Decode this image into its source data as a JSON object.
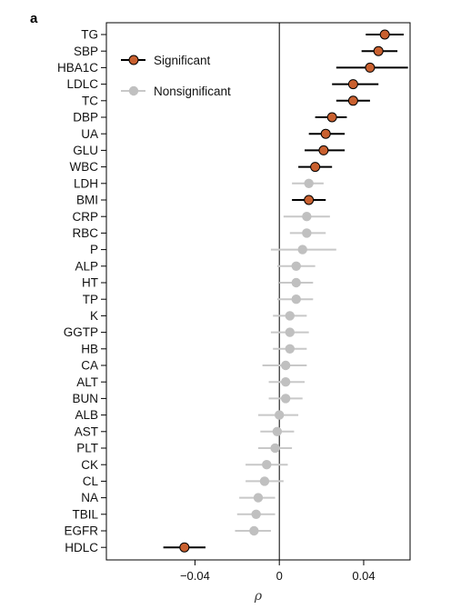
{
  "panel_label": "a",
  "colors": {
    "significant": "#c9602f",
    "nonsignificant": "#c0c0c0",
    "sig_whisker": "#000000",
    "nonsig_whisker": "#c8c8c8"
  },
  "chart_data": {
    "type": "scatter",
    "subtype": "forest-plot",
    "xlabel": "ρ",
    "ylabel": "",
    "xlim": [
      -0.082,
      0.062
    ],
    "xticks": [
      -0.04,
      0,
      0.04
    ],
    "xtick_labels": [
      "−0.04",
      "0",
      "0.04"
    ],
    "vline_at": 0,
    "legend": {
      "placement": "top-left",
      "entries": [
        {
          "label": "Significant",
          "status": "significant"
        },
        {
          "label": "Nonsignificant",
          "status": "nonsignificant"
        }
      ]
    },
    "points": [
      {
        "label": "TG",
        "estimate": 0.05,
        "low": 0.041,
        "high": 0.059,
        "status": "significant"
      },
      {
        "label": "SBP",
        "estimate": 0.047,
        "low": 0.039,
        "high": 0.056,
        "status": "significant"
      },
      {
        "label": "HBA1C",
        "estimate": 0.043,
        "low": 0.027,
        "high": 0.061,
        "status": "significant"
      },
      {
        "label": "LDLC",
        "estimate": 0.035,
        "low": 0.025,
        "high": 0.047,
        "status": "significant"
      },
      {
        "label": "TC",
        "estimate": 0.035,
        "low": 0.027,
        "high": 0.043,
        "status": "significant"
      },
      {
        "label": "DBP",
        "estimate": 0.025,
        "low": 0.017,
        "high": 0.032,
        "status": "significant"
      },
      {
        "label": "UA",
        "estimate": 0.022,
        "low": 0.014,
        "high": 0.031,
        "status": "significant"
      },
      {
        "label": "GLU",
        "estimate": 0.021,
        "low": 0.012,
        "high": 0.031,
        "status": "significant"
      },
      {
        "label": "WBC",
        "estimate": 0.017,
        "low": 0.009,
        "high": 0.025,
        "status": "significant"
      },
      {
        "label": "LDH",
        "estimate": 0.014,
        "low": 0.006,
        "high": 0.021,
        "status": "nonsignificant"
      },
      {
        "label": "BMI",
        "estimate": 0.014,
        "low": 0.006,
        "high": 0.022,
        "status": "significant"
      },
      {
        "label": "CRP",
        "estimate": 0.013,
        "low": 0.002,
        "high": 0.024,
        "status": "nonsignificant"
      },
      {
        "label": "RBC",
        "estimate": 0.013,
        "low": 0.005,
        "high": 0.022,
        "status": "nonsignificant"
      },
      {
        "label": "P",
        "estimate": 0.011,
        "low": -0.004,
        "high": 0.027,
        "status": "nonsignificant"
      },
      {
        "label": "ALP",
        "estimate": 0.008,
        "low": -0.001,
        "high": 0.017,
        "status": "nonsignificant"
      },
      {
        "label": "HT",
        "estimate": 0.008,
        "low": 0.0,
        "high": 0.016,
        "status": "nonsignificant"
      },
      {
        "label": "TP",
        "estimate": 0.008,
        "low": -0.001,
        "high": 0.016,
        "status": "nonsignificant"
      },
      {
        "label": "K",
        "estimate": 0.005,
        "low": -0.003,
        "high": 0.013,
        "status": "nonsignificant"
      },
      {
        "label": "GGTP",
        "estimate": 0.005,
        "low": -0.004,
        "high": 0.014,
        "status": "nonsignificant"
      },
      {
        "label": "HB",
        "estimate": 0.005,
        "low": -0.003,
        "high": 0.013,
        "status": "nonsignificant"
      },
      {
        "label": "CA",
        "estimate": 0.003,
        "low": -0.008,
        "high": 0.013,
        "status": "nonsignificant"
      },
      {
        "label": "ALT",
        "estimate": 0.003,
        "low": -0.005,
        "high": 0.012,
        "status": "nonsignificant"
      },
      {
        "label": "BUN",
        "estimate": 0.003,
        "low": -0.005,
        "high": 0.011,
        "status": "nonsignificant"
      },
      {
        "label": "ALB",
        "estimate": 0.0,
        "low": -0.01,
        "high": 0.009,
        "status": "nonsignificant"
      },
      {
        "label": "AST",
        "estimate": -0.001,
        "low": -0.009,
        "high": 0.007,
        "status": "nonsignificant"
      },
      {
        "label": "PLT",
        "estimate": -0.002,
        "low": -0.01,
        "high": 0.006,
        "status": "nonsignificant"
      },
      {
        "label": "CK",
        "estimate": -0.006,
        "low": -0.016,
        "high": 0.004,
        "status": "nonsignificant"
      },
      {
        "label": "CL",
        "estimate": -0.007,
        "low": -0.016,
        "high": 0.002,
        "status": "nonsignificant"
      },
      {
        "label": "NA",
        "estimate": -0.01,
        "low": -0.019,
        "high": -0.002,
        "status": "nonsignificant"
      },
      {
        "label": "TBIL",
        "estimate": -0.011,
        "low": -0.02,
        "high": -0.002,
        "status": "nonsignificant"
      },
      {
        "label": "EGFR",
        "estimate": -0.012,
        "low": -0.021,
        "high": -0.004,
        "status": "nonsignificant"
      },
      {
        "label": "HDLC",
        "estimate": -0.045,
        "low": -0.055,
        "high": -0.035,
        "status": "significant"
      }
    ]
  }
}
